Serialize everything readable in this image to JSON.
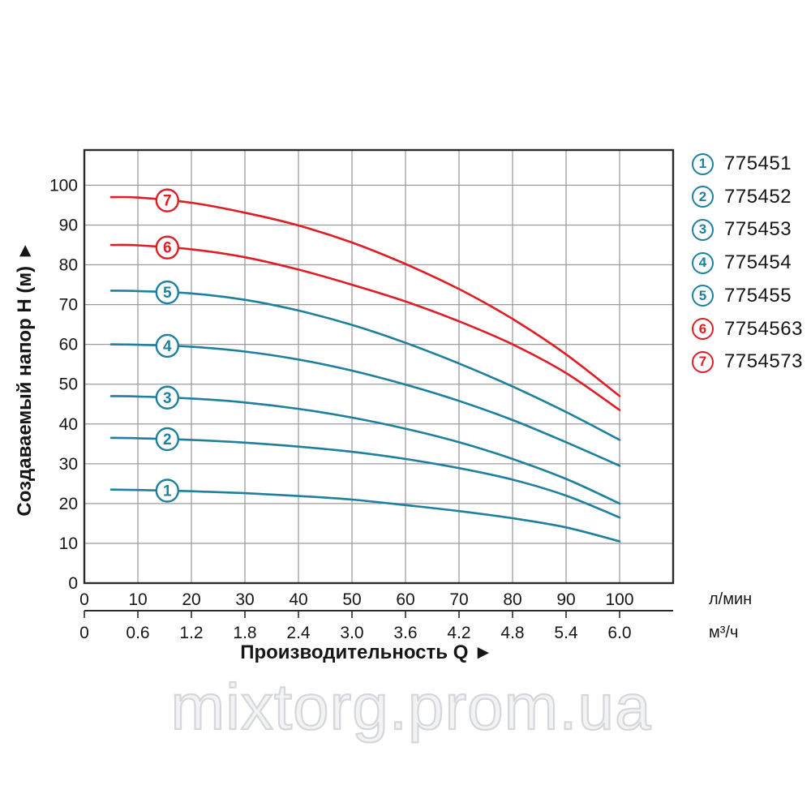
{
  "watermark": {
    "text": "mixtorg.prom.ua"
  },
  "chart_data": {
    "type": "line",
    "title": "",
    "ylabel": "Создаваемый напор Н (м) ►",
    "xlabel": "Производительность Q ►",
    "grid": true,
    "legend_position": "right",
    "xlim": [
      0,
      110
    ],
    "ylim": [
      0,
      109
    ],
    "marker_q": 15.5,
    "colors": {
      "grid": "#9b9b9b",
      "axis": "#2a2a2a",
      "text": "#161616"
    },
    "x_axis": {
      "primary": {
        "unit": "л/мин",
        "ticks": [
          "0",
          "10",
          "20",
          "30",
          "40",
          "50",
          "60",
          "70",
          "80",
          "90",
          "100"
        ],
        "values": [
          0,
          10,
          20,
          30,
          40,
          50,
          60,
          70,
          80,
          90,
          100
        ]
      },
      "secondary": {
        "unit": "м³/ч",
        "ticks": [
          "0",
          "0.6",
          "1.2",
          "1.8",
          "2.4",
          "3.0",
          "3.6",
          "4.2",
          "4.8",
          "5.4",
          "6.0"
        ],
        "values": [
          0,
          10,
          20,
          30,
          40,
          50,
          60,
          70,
          80,
          90,
          100
        ]
      }
    },
    "y_axis": {
      "ticks": [
        "0",
        "10",
        "20",
        "30",
        "40",
        "50",
        "60",
        "70",
        "80",
        "90",
        "100"
      ],
      "values": [
        0,
        10,
        20,
        30,
        40,
        50,
        60,
        70,
        80,
        90,
        100
      ]
    },
    "series": [
      {
        "id": "1",
        "label": "775451",
        "color": "#1e7f9f",
        "points": [
          [
            5,
            23.5
          ],
          [
            10,
            23.4
          ],
          [
            20,
            23.1
          ],
          [
            30,
            22.6
          ],
          [
            40,
            21.9
          ],
          [
            50,
            21.0
          ],
          [
            60,
            19.6
          ],
          [
            70,
            18.1
          ],
          [
            80,
            16.3
          ],
          [
            90,
            14.0
          ],
          [
            100,
            10.5
          ]
        ]
      },
      {
        "id": "2",
        "label": "775452",
        "color": "#1e7f9f",
        "points": [
          [
            5,
            36.5
          ],
          [
            10,
            36.4
          ],
          [
            20,
            36.0
          ],
          [
            30,
            35.3
          ],
          [
            40,
            34.3
          ],
          [
            50,
            33.0
          ],
          [
            60,
            31.2
          ],
          [
            70,
            28.9
          ],
          [
            80,
            26.0
          ],
          [
            90,
            22.0
          ],
          [
            100,
            16.5
          ]
        ]
      },
      {
        "id": "3",
        "label": "775453",
        "color": "#1e7f9f",
        "points": [
          [
            5,
            47.0
          ],
          [
            10,
            46.9
          ],
          [
            20,
            46.4
          ],
          [
            30,
            45.4
          ],
          [
            40,
            43.8
          ],
          [
            50,
            41.6
          ],
          [
            60,
            38.8
          ],
          [
            70,
            35.4
          ],
          [
            80,
            31.2
          ],
          [
            90,
            26.2
          ],
          [
            100,
            20.0
          ]
        ]
      },
      {
        "id": "4",
        "label": "775454",
        "color": "#1e7f9f",
        "points": [
          [
            5,
            60.0
          ],
          [
            10,
            59.9
          ],
          [
            20,
            59.4
          ],
          [
            30,
            58.2
          ],
          [
            40,
            56.2
          ],
          [
            50,
            53.4
          ],
          [
            60,
            49.9
          ],
          [
            70,
            45.8
          ],
          [
            80,
            41.0
          ],
          [
            90,
            35.4
          ],
          [
            100,
            29.5
          ]
        ]
      },
      {
        "id": "5",
        "label": "775455",
        "color": "#1e7f9f",
        "points": [
          [
            5,
            73.5
          ],
          [
            10,
            73.4
          ],
          [
            20,
            72.8
          ],
          [
            30,
            71.2
          ],
          [
            40,
            68.5
          ],
          [
            50,
            64.9
          ],
          [
            60,
            60.4
          ],
          [
            70,
            55.2
          ],
          [
            80,
            49.4
          ],
          [
            90,
            43.0
          ],
          [
            100,
            36.0
          ]
        ]
      },
      {
        "id": "6",
        "label": "7754563",
        "color": "#e01d24",
        "points": [
          [
            5,
            85.0
          ],
          [
            10,
            84.9
          ],
          [
            20,
            83.9
          ],
          [
            30,
            81.9
          ],
          [
            40,
            78.8
          ],
          [
            50,
            75.0
          ],
          [
            60,
            70.8
          ],
          [
            70,
            65.8
          ],
          [
            80,
            60.0
          ],
          [
            90,
            52.8
          ],
          [
            100,
            43.5
          ]
        ]
      },
      {
        "id": "7",
        "label": "7754573",
        "color": "#e01d24",
        "points": [
          [
            5,
            97.0
          ],
          [
            10,
            96.9
          ],
          [
            20,
            95.6
          ],
          [
            30,
            93.1
          ],
          [
            40,
            89.9
          ],
          [
            50,
            85.6
          ],
          [
            60,
            80.2
          ],
          [
            70,
            73.9
          ],
          [
            80,
            66.4
          ],
          [
            90,
            57.5
          ],
          [
            100,
            47.0
          ]
        ]
      }
    ]
  }
}
